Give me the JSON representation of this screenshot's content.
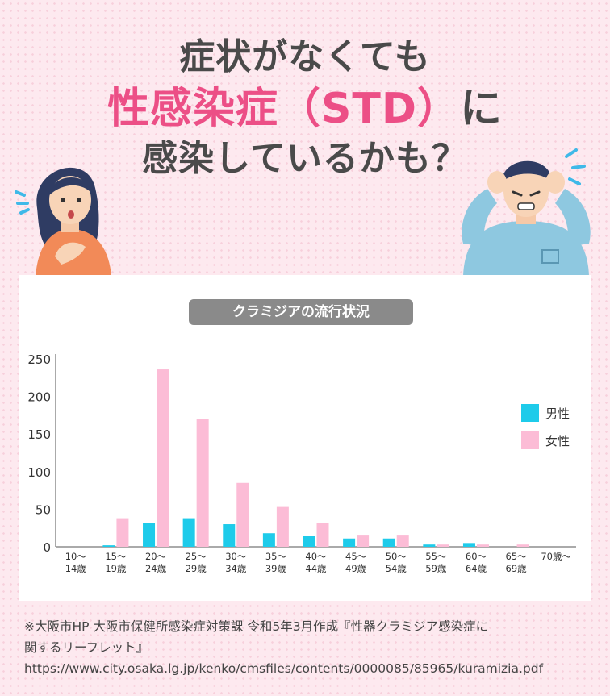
{
  "headline": {
    "line1": "症状がなくても",
    "line2_main": "性感染症（STD）",
    "line2_suffix": "に",
    "line3": "感染しているかも？"
  },
  "chart_data": {
    "type": "bar",
    "title": "クラミジアの流行状況",
    "categories": [
      [
        "10～",
        "14歳"
      ],
      [
        "15～",
        "19歳"
      ],
      [
        "20～",
        "24歳"
      ],
      [
        "25～",
        "29歳"
      ],
      [
        "30～",
        "34歳"
      ],
      [
        "35～",
        "39歳"
      ],
      [
        "40～",
        "44歳"
      ],
      [
        "45～",
        "49歳"
      ],
      [
        "50～",
        "54歳"
      ],
      [
        "55～",
        "59歳"
      ],
      [
        "60～",
        "64歳"
      ],
      [
        "65～",
        "69歳"
      ],
      [
        "70歳～",
        ""
      ]
    ],
    "series": [
      {
        "name": "男性",
        "color": "#1ecbea",
        "values": [
          0,
          2,
          32,
          38,
          30,
          18,
          14,
          11,
          11,
          3,
          5,
          0,
          0
        ]
      },
      {
        "name": "女性",
        "color": "#fcbcd6",
        "values": [
          0,
          38,
          236,
          170,
          85,
          53,
          32,
          16,
          16,
          3,
          3,
          3,
          0
        ]
      }
    ],
    "ylim": [
      0,
      250
    ],
    "yticks": [
      0,
      50,
      100,
      150,
      200,
      250
    ],
    "grid": false,
    "legend": "right"
  },
  "source": {
    "line1": "※大阪市HP 大阪市保健所感染症対策課 令和5年3月作成『性器クラミジア感染症に",
    "line2": "関するリーフレット』",
    "line3": "https://www.city.osaka.lg.jp/kenko/cmsfiles/contents/0000085/85965/kuramizia.pdf"
  }
}
